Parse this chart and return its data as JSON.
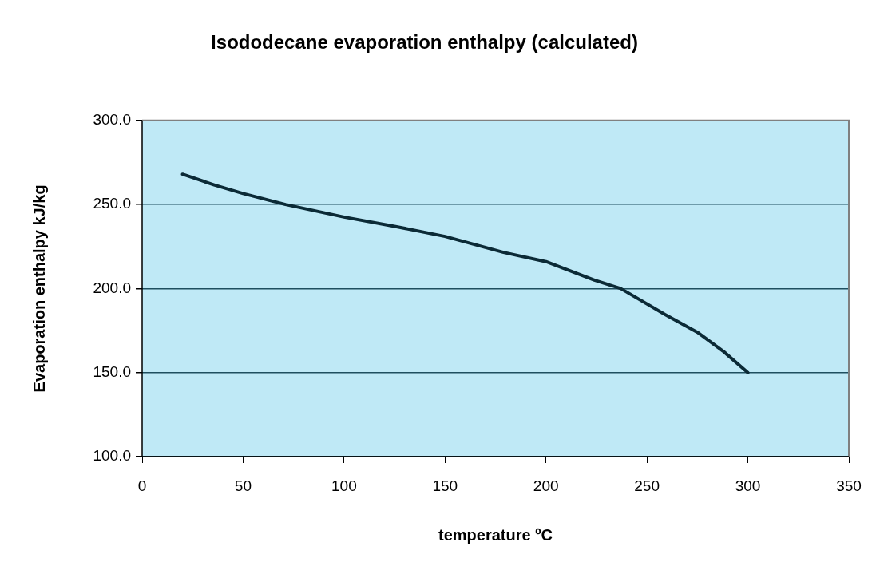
{
  "chart_data": {
    "type": "line",
    "title": "Isododecane evaporation enthalpy (calculated)",
    "xlabel": "temperature ºC",
    "ylabel": "Evaporation enthalpy kJ/kg",
    "x": [
      20,
      36,
      50,
      71,
      100,
      125,
      150,
      179,
      200,
      224,
      237,
      259,
      275,
      288,
      300
    ],
    "series": [
      {
        "color": "#0b2a36",
        "values": [
          268,
          261.5,
          256.5,
          250,
          242.5,
          237,
          231,
          221.5,
          216,
          205,
          200,
          184.5,
          174,
          162.5,
          150
        ]
      }
    ],
    "xlim": [
      0,
      350
    ],
    "xticks": [
      0,
      50,
      100,
      150,
      200,
      250,
      300,
      350
    ],
    "ylim": [
      100,
      300
    ],
    "yticks": [
      {
        "value": 100,
        "label": "100.0"
      },
      {
        "value": 150,
        "label": "150.0"
      },
      {
        "value": 200,
        "label": "200.0"
      },
      {
        "value": 250,
        "label": "250.0"
      },
      {
        "value": 300,
        "label": "300.0"
      }
    ],
    "grid": "y"
  }
}
